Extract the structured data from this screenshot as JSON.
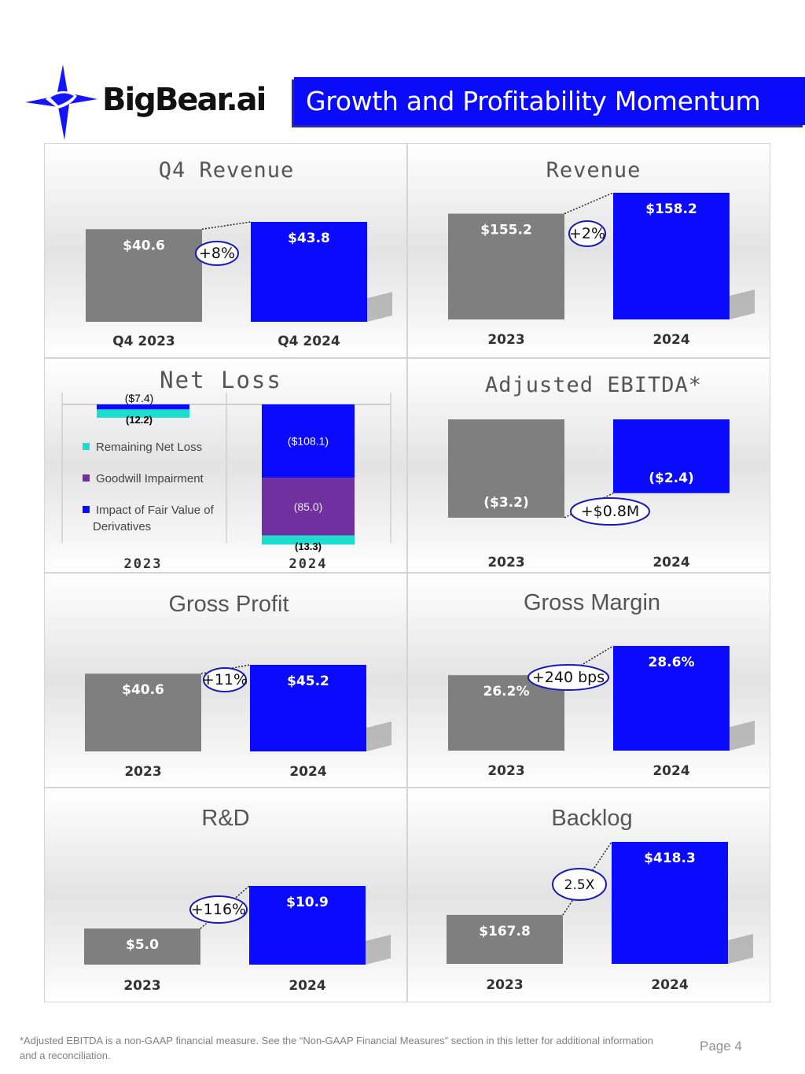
{
  "header": {
    "logo_text": "BigBear.ai",
    "title": "Growth and Profitability Momentum"
  },
  "colors": {
    "prior_bar": "#7f7f7f",
    "current_bar": "#0a0aff",
    "remaining_net_loss": "#1adfcf",
    "goodwill_impairment": "#7030a0",
    "fair_value_derivatives": "#0a0aff"
  },
  "chart_data": [
    {
      "id": "q4-revenue",
      "type": "bar",
      "title": "Q4 Revenue",
      "categories": [
        "Q4 2023",
        "Q4 2024"
      ],
      "values": [
        40.6,
        43.8
      ],
      "labels": [
        "$40.6",
        "$43.8"
      ],
      "change_label": "+8%",
      "ylim": [
        0,
        50
      ]
    },
    {
      "id": "revenue",
      "type": "bar",
      "title": "Revenue",
      "categories": [
        "2023",
        "2024"
      ],
      "values": [
        155.2,
        158.2
      ],
      "labels": [
        "$155.2",
        "$158.2"
      ],
      "change_label": "+2%",
      "ylim": [
        140,
        160
      ]
    },
    {
      "id": "net-loss",
      "type": "bar",
      "stacked": true,
      "title": "Net Loss",
      "categories": [
        "2023",
        "2024"
      ],
      "series": [
        {
          "name": "Impact of Fair Value of Derivatives",
          "values": [
            -7.4,
            -108.1
          ],
          "labels": [
            "($7.4)",
            "($108.1)"
          ]
        },
        {
          "name": "Goodwill Impairment",
          "values": [
            0,
            -85.0
          ],
          "labels": [
            "",
            "(85.0)"
          ]
        },
        {
          "name": "Remaining Net Loss",
          "values": [
            -12.2,
            -13.3
          ],
          "labels": [
            "(12.2)",
            "(13.3)"
          ]
        }
      ],
      "legend_order": [
        "Remaining Net Loss",
        "Goodwill Impairment",
        "Impact of Fair Value of Derivatives"
      ],
      "ylim": [
        -210,
        0
      ]
    },
    {
      "id": "adjusted-ebitda",
      "type": "bar",
      "title": "Adjusted EBITDA*",
      "categories": [
        "2023",
        "2024"
      ],
      "values": [
        -3.2,
        -2.4
      ],
      "labels": [
        "($3.2)",
        "($2.4)"
      ],
      "change_label": "+$0.8M",
      "ylim": [
        -3.2,
        0
      ]
    },
    {
      "id": "gross-profit",
      "type": "bar",
      "title": "Gross Profit",
      "categories": [
        "2023",
        "2024"
      ],
      "values": [
        40.6,
        45.2
      ],
      "labels": [
        "$40.6",
        "$45.2"
      ],
      "change_label": "+11%",
      "ylim": [
        0,
        60
      ]
    },
    {
      "id": "gross-margin",
      "type": "bar",
      "title": "Gross Margin",
      "categories": [
        "2023",
        "2024"
      ],
      "values": [
        26.2,
        28.6
      ],
      "labels": [
        "26.2%",
        "28.6%"
      ],
      "change_label": "+240 bps",
      "ylim": [
        20,
        30
      ]
    },
    {
      "id": "rnd",
      "type": "bar",
      "title": "R&D",
      "categories": [
        "2023",
        "2024"
      ],
      "values": [
        5.0,
        10.9
      ],
      "labels": [
        "$5.0",
        "$10.9"
      ],
      "change_label": "+116%",
      "ylim": [
        0,
        23
      ]
    },
    {
      "id": "backlog",
      "type": "bar",
      "title": "Backlog",
      "categories": [
        "2023",
        "2024"
      ],
      "values": [
        167.8,
        418.3
      ],
      "labels": [
        "$167.8",
        "$418.3"
      ],
      "change_label": "2.5X",
      "ylim": [
        0,
        500
      ]
    }
  ],
  "footer": {
    "note": "*Adjusted EBITDA is a non-GAAP financial measure. See the “Non-GAAP Financial Measures” section in this letter for additional information and a reconciliation.",
    "page": "Page 4"
  }
}
